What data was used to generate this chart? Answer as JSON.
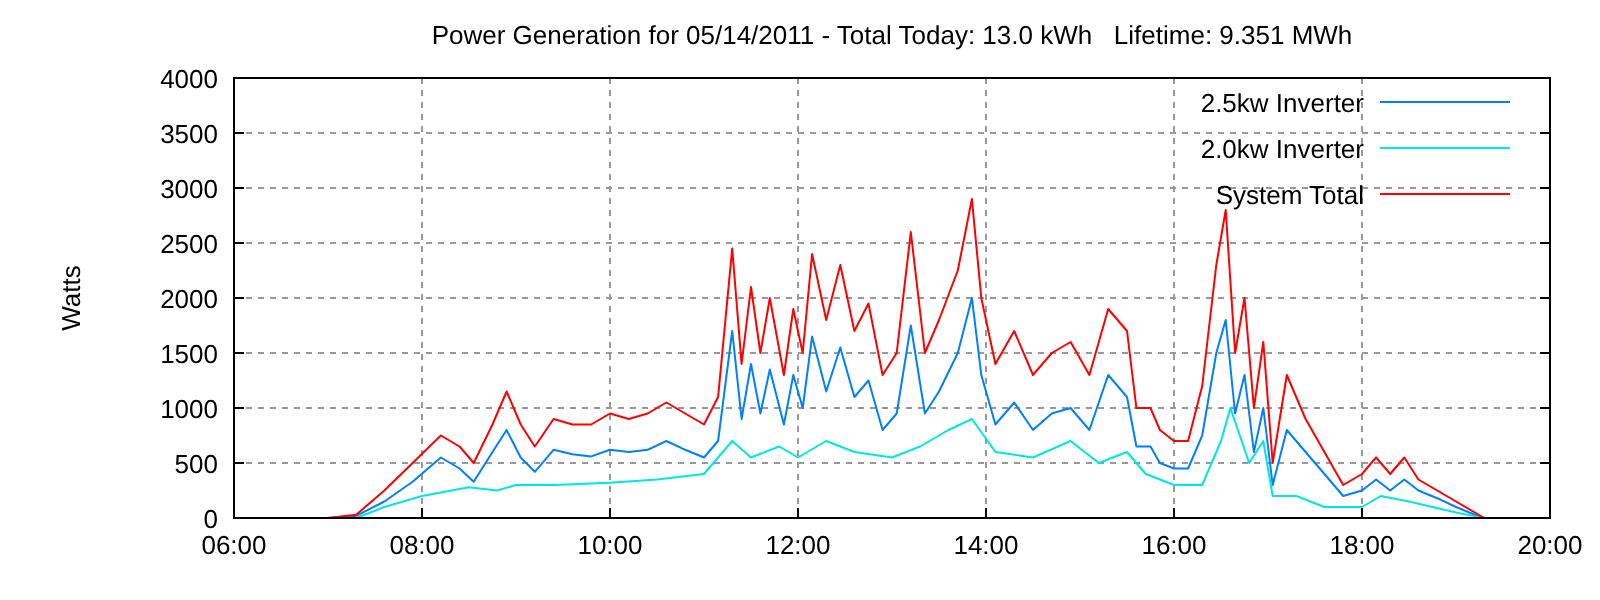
{
  "chart_data": {
    "type": "line",
    "title": "Power Generation for 05/14/2011 - Total Today: 13.0 kWh   Lifetime: 9.351 MWh",
    "ylabel": "Watts",
    "xlim": [
      6,
      20
    ],
    "xticks": [
      {
        "value": 6,
        "label": "06:00"
      },
      {
        "value": 8,
        "label": "08:00"
      },
      {
        "value": 10,
        "label": "10:00"
      },
      {
        "value": 12,
        "label": "12:00"
      },
      {
        "value": 14,
        "label": "14:00"
      },
      {
        "value": 16,
        "label": "16:00"
      },
      {
        "value": 18,
        "label": "18:00"
      },
      {
        "value": 20,
        "label": "20:00"
      }
    ],
    "ylim": [
      0,
      4000
    ],
    "yticks": [
      0,
      500,
      1000,
      1500,
      2000,
      2500,
      3000,
      3500,
      4000
    ],
    "grid": true,
    "legend": "top right",
    "line_style": "solid",
    "series": [
      {
        "name": "2.5kw Inverter",
        "color": "#0080ff",
        "x": [
          7.0,
          7.3,
          7.6,
          7.9,
          8.2,
          8.4,
          8.55,
          8.75,
          8.9,
          9.05,
          9.2,
          9.4,
          9.6,
          9.8,
          10.0,
          10.2,
          10.4,
          10.6,
          10.8,
          11.0,
          11.15,
          11.3,
          11.4,
          11.5,
          11.6,
          11.7,
          11.85,
          11.95,
          12.05,
          12.15,
          12.3,
          12.45,
          12.6,
          12.75,
          12.9,
          13.05,
          13.2,
          13.35,
          13.5,
          13.7,
          13.85,
          13.95,
          14.1,
          14.3,
          14.5,
          14.7,
          14.9,
          15.1,
          15.3,
          15.5,
          15.6,
          15.75,
          15.85,
          16.0,
          16.15,
          16.3,
          16.45,
          16.55,
          16.65,
          16.75,
          16.85,
          16.95,
          17.05,
          17.2,
          17.4,
          17.6,
          17.8,
          18.0,
          18.15,
          18.3,
          18.45,
          18.6,
          18.8,
          19.0,
          19.2,
          19.3
        ],
        "values": [
          0,
          20,
          150,
          330,
          550,
          450,
          330,
          600,
          800,
          550,
          420,
          620,
          580,
          560,
          620,
          600,
          620,
          700,
          620,
          550,
          700,
          1700,
          900,
          1400,
          950,
          1350,
          850,
          1300,
          1000,
          1650,
          1150,
          1550,
          1100,
          1250,
          800,
          950,
          1750,
          950,
          1150,
          1500,
          2000,
          1300,
          850,
          1050,
          800,
          950,
          1000,
          800,
          1300,
          1100,
          650,
          650,
          500,
          450,
          450,
          750,
          1500,
          1800,
          950,
          1300,
          600,
          1000,
          300,
          800,
          600,
          400,
          200,
          250,
          350,
          250,
          350,
          250,
          180,
          100,
          30,
          0
        ]
      },
      {
        "name": "2.0kw Inverter",
        "color": "#00e5e5",
        "x": [
          7.3,
          7.6,
          8.0,
          8.5,
          8.8,
          9.0,
          9.4,
          10.0,
          10.5,
          11.0,
          11.3,
          11.5,
          11.8,
          12.0,
          12.3,
          12.6,
          13.0,
          13.3,
          13.6,
          13.85,
          14.1,
          14.5,
          14.9,
          15.2,
          15.5,
          15.7,
          16.0,
          16.3,
          16.5,
          16.6,
          16.8,
          16.95,
          17.05,
          17.3,
          17.6,
          18.0,
          18.2,
          18.5,
          19.0,
          19.3
        ],
        "values": [
          0,
          100,
          200,
          280,
          250,
          300,
          300,
          320,
          350,
          400,
          700,
          550,
          650,
          550,
          700,
          600,
          550,
          650,
          800,
          900,
          600,
          550,
          700,
          500,
          600,
          400,
          300,
          300,
          700,
          1000,
          500,
          700,
          200,
          200,
          100,
          100,
          200,
          150,
          50,
          0
        ]
      },
      {
        "name": "System Total",
        "color": "#ff0000",
        "x": [
          7.0,
          7.3,
          7.6,
          7.9,
          8.2,
          8.4,
          8.55,
          8.75,
          8.9,
          9.05,
          9.2,
          9.4,
          9.6,
          9.8,
          10.0,
          10.2,
          10.4,
          10.6,
          10.8,
          11.0,
          11.15,
          11.3,
          11.4,
          11.5,
          11.6,
          11.7,
          11.85,
          11.95,
          12.05,
          12.15,
          12.3,
          12.45,
          12.6,
          12.75,
          12.9,
          13.05,
          13.2,
          13.35,
          13.5,
          13.7,
          13.85,
          13.95,
          14.1,
          14.3,
          14.5,
          14.7,
          14.9,
          15.1,
          15.3,
          15.5,
          15.6,
          15.75,
          15.85,
          16.0,
          16.15,
          16.3,
          16.45,
          16.55,
          16.65,
          16.75,
          16.85,
          16.95,
          17.05,
          17.2,
          17.4,
          17.6,
          17.8,
          18.0,
          18.15,
          18.3,
          18.45,
          18.6,
          18.8,
          19.0,
          19.2,
          19.3
        ],
        "values": [
          0,
          30,
          250,
          500,
          750,
          650,
          500,
          850,
          1150,
          850,
          650,
          900,
          850,
          850,
          950,
          900,
          950,
          1050,
          950,
          850,
          1100,
          2450,
          1400,
          2100,
          1500,
          2000,
          1300,
          1900,
          1500,
          2400,
          1800,
          2300,
          1700,
          1950,
          1300,
          1500,
          2600,
          1500,
          1800,
          2250,
          2900,
          2000,
          1400,
          1700,
          1300,
          1500,
          1600,
          1300,
          1900,
          1700,
          1000,
          1000,
          800,
          700,
          700,
          1200,
          2300,
          2800,
          1500,
          2000,
          1000,
          1600,
          500,
          1300,
          900,
          600,
          300,
          400,
          550,
          400,
          550,
          350,
          250,
          150,
          50,
          0
        ]
      }
    ]
  }
}
